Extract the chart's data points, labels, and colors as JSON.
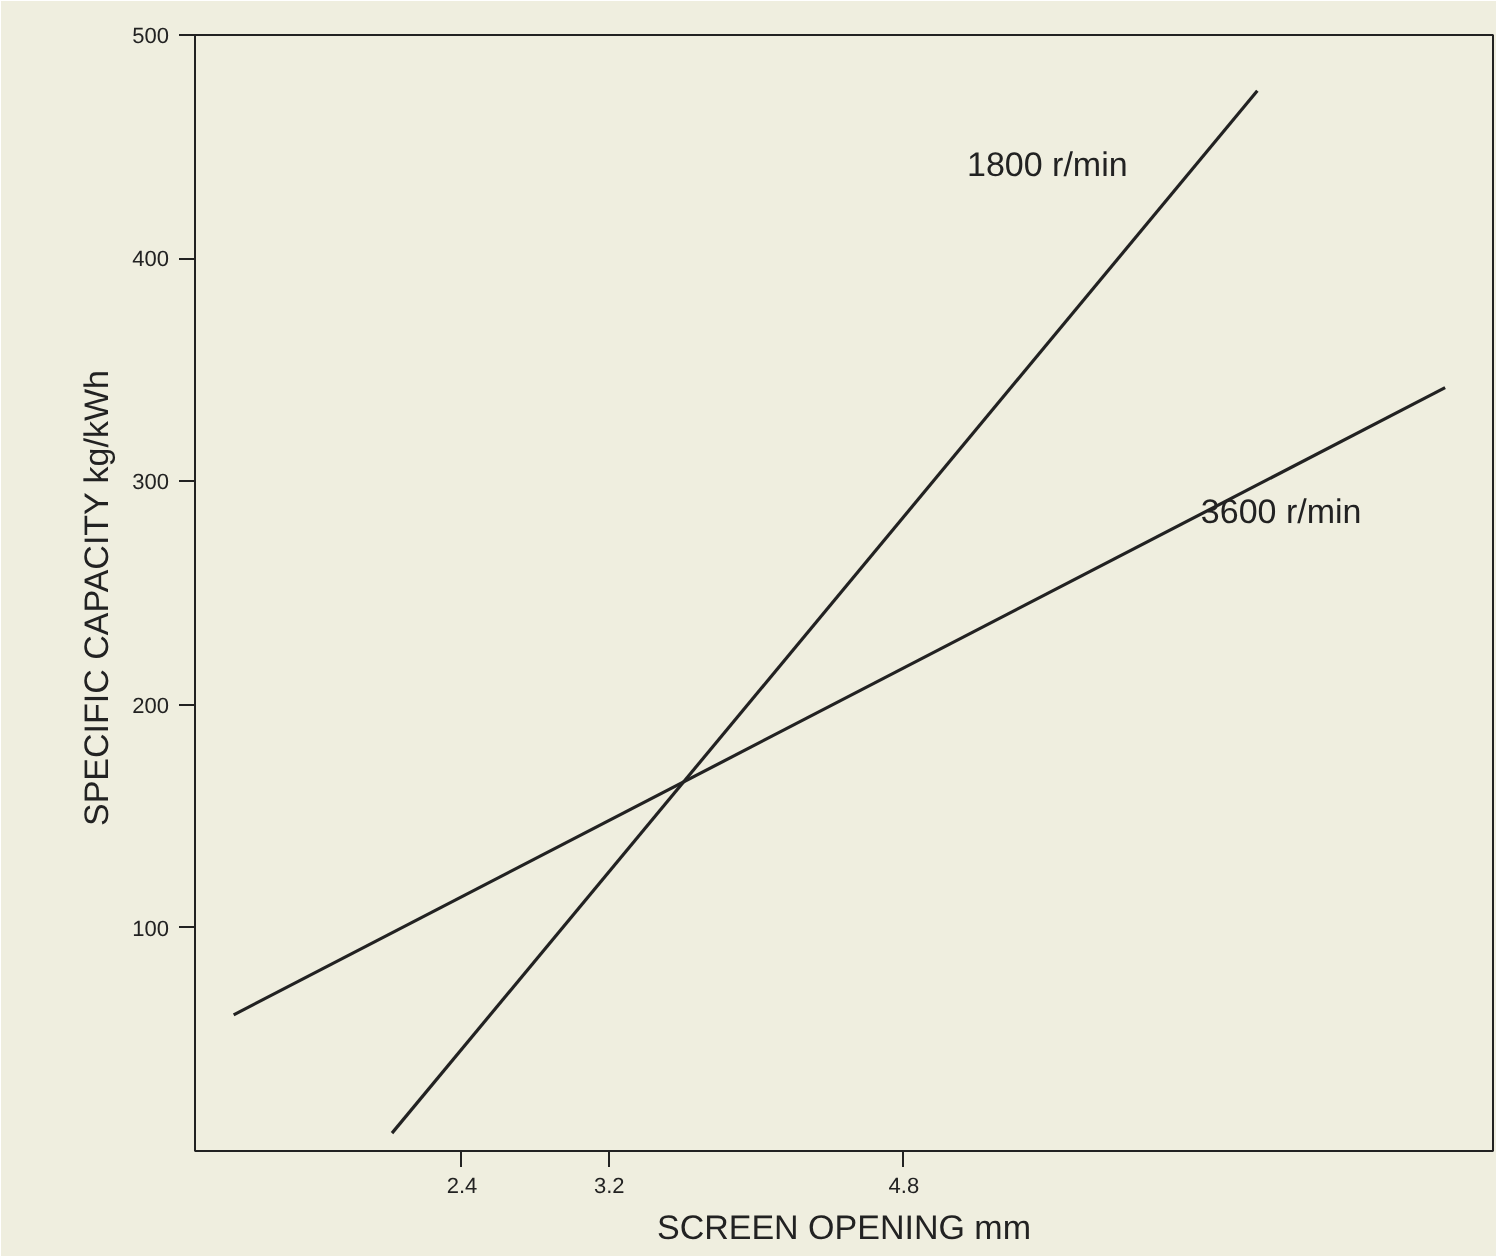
{
  "chart_data": {
    "type": "line",
    "xlabel": "SCREEN OPENING mm",
    "ylabel": "SPECIFIC CAPACITY  kg/kWh",
    "xlim": [
      0.95,
      8.0
    ],
    "ylim": [
      0,
      500
    ],
    "xticks": [
      2.4,
      3.2,
      4.8
    ],
    "yticks": [
      100,
      200,
      300,
      400,
      500
    ],
    "grid": false,
    "legend": false,
    "marker": "none",
    "line_style": "solid",
    "series": [
      {
        "name": "1800 r/min",
        "color": "#222222",
        "x": [
          2.02,
          6.72
        ],
        "values": [
          8,
          475
        ]
      },
      {
        "name": "3600 r/min",
        "color": "#222222",
        "x": [
          1.16,
          7.74
        ],
        "values": [
          61,
          342
        ]
      }
    ]
  }
}
